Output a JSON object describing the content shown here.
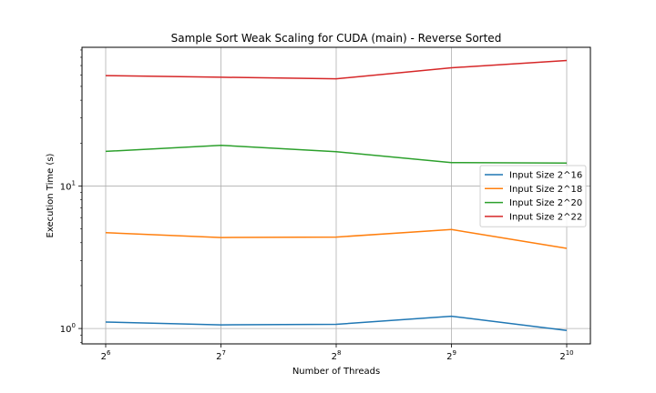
{
  "chart_data": {
    "type": "line",
    "title": "Sample Sort Weak Scaling for CUDA (main) - Reverse Sorted",
    "xlabel": "Number of Threads",
    "ylabel": "Execution Time (s)",
    "x_scale": "log2",
    "y_scale": "log10",
    "x": [
      64,
      128,
      256,
      512,
      1024
    ],
    "x_tick_labels": [
      {
        "base": "2",
        "exp": "6"
      },
      {
        "base": "2",
        "exp": "7"
      },
      {
        "base": "2",
        "exp": "8"
      },
      {
        "base": "2",
        "exp": "9"
      },
      {
        "base": "2",
        "exp": "10"
      }
    ],
    "y_tick_labels": [
      {
        "value": 1,
        "base": "10",
        "exp": "0"
      },
      {
        "value": 10,
        "base": "10",
        "exp": "1"
      }
    ],
    "ylim": [
      0.78,
      94
    ],
    "grid": true,
    "legend_position": "center-right",
    "series": [
      {
        "name": "Input Size 2^16",
        "color": "#1f77b4",
        "values": [
          1.11,
          1.06,
          1.07,
          1.22,
          0.97
        ]
      },
      {
        "name": "Input Size 2^18",
        "color": "#ff7f0e",
        "values": [
          4.7,
          4.35,
          4.38,
          4.95,
          3.65
        ]
      },
      {
        "name": "Input Size 2^20",
        "color": "#2ca02c",
        "values": [
          17.5,
          19.3,
          17.4,
          14.6,
          14.5
        ]
      },
      {
        "name": "Input Size 2^22",
        "color": "#d62728",
        "values": [
          59.5,
          58.0,
          56.5,
          67.5,
          76.0
        ]
      }
    ]
  }
}
